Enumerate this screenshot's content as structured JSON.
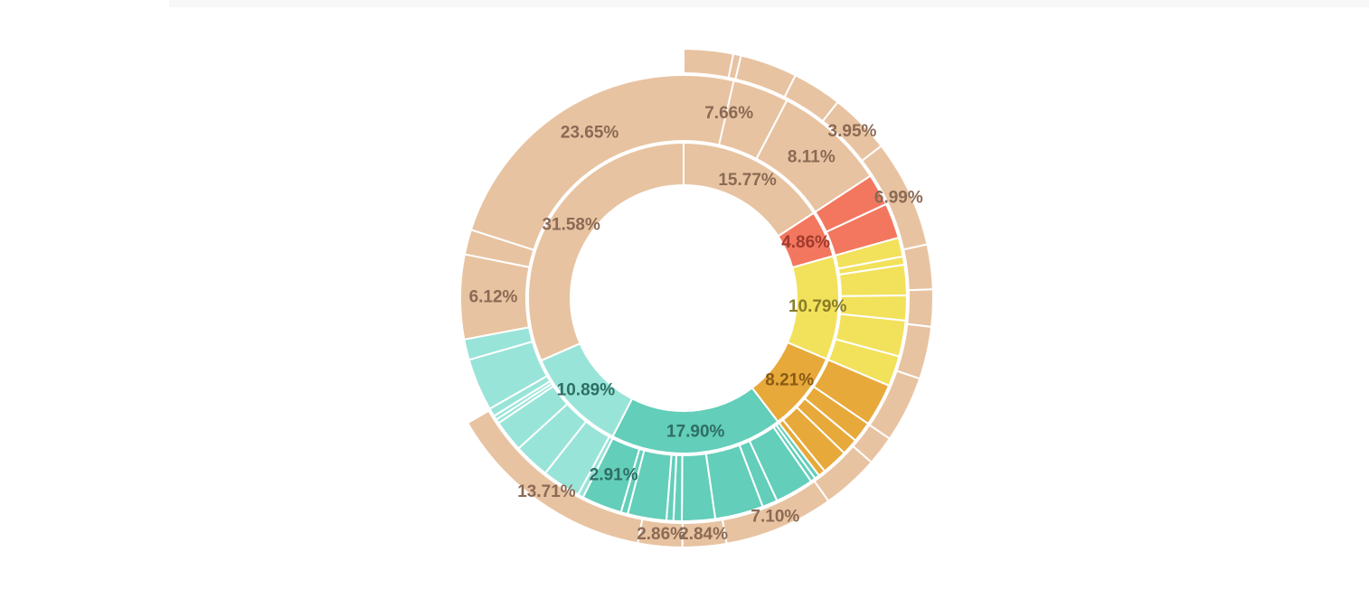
{
  "chart_data": {
    "type": "sunburst",
    "start_angle_deg": 0,
    "colors": {
      "peach": "#e8c3a1",
      "red": "#f3775f",
      "yellow": "#f2e15b",
      "orange": "#e7a93a",
      "teal": "#63ceba",
      "light_teal": "#99e4d8",
      "label_peach": "#8b6a55",
      "label_red": "#a23a2d",
      "label_yellow": "#8a7d27",
      "label_orange": "#8a5a14",
      "label_teal": "#2f6e63"
    },
    "rings": [
      {
        "name": "inner",
        "segments": [
          {
            "color": "peach",
            "value": 15.77,
            "label": "15.77%"
          },
          {
            "color": "red",
            "value": 4.86,
            "label": "4.86%"
          },
          {
            "color": "yellow",
            "value": 10.79,
            "label": "10.79%"
          },
          {
            "color": "orange",
            "value": 8.21,
            "label": "8.21%"
          },
          {
            "color": "teal",
            "value": 17.9,
            "label": "17.90%"
          },
          {
            "color": "light_teal",
            "value": 10.89,
            "label": "10.89%"
          },
          {
            "color": "peach",
            "value": 31.58,
            "label": "31.58%"
          }
        ]
      },
      {
        "name": "middle",
        "segments": [
          {
            "color": "peach",
            "value": 7.66,
            "label": "7.66%"
          },
          {
            "color": "peach",
            "value": 8.11,
            "label": "8.11%"
          },
          {
            "color": "red",
            "value": 2.31,
            "label": ""
          },
          {
            "color": "red",
            "value": 2.55,
            "label": ""
          },
          {
            "color": "yellow",
            "value": 1.38,
            "label": ""
          },
          {
            "color": "yellow",
            "value": 0.6,
            "label": ""
          },
          {
            "color": "yellow",
            "value": 2.2,
            "label": ""
          },
          {
            "color": "yellow",
            "value": 1.8,
            "label": ""
          },
          {
            "color": "yellow",
            "value": 2.6,
            "label": ""
          },
          {
            "color": "yellow",
            "value": 2.21,
            "label": ""
          },
          {
            "color": "orange",
            "value": 3.1,
            "label": ""
          },
          {
            "color": "orange",
            "value": 1.5,
            "label": ""
          },
          {
            "color": "orange",
            "value": 1.2,
            "label": ""
          },
          {
            "color": "orange",
            "value": 1.9,
            "label": ""
          },
          {
            "color": "orange",
            "value": 0.51,
            "label": ""
          },
          {
            "color": "teal",
            "value": 0.35,
            "label": ""
          },
          {
            "color": "teal",
            "value": 0.35,
            "label": ""
          },
          {
            "color": "teal",
            "value": 2.8,
            "label": ""
          },
          {
            "color": "teal",
            "value": 1.1,
            "label": ""
          },
          {
            "color": "teal",
            "value": 3.5,
            "label": ""
          },
          {
            "color": "teal",
            "value": 2.4,
            "label": ""
          },
          {
            "color": "teal",
            "value": 0.6,
            "label": ""
          },
          {
            "color": "teal",
            "value": 0.5,
            "label": ""
          },
          {
            "color": "teal",
            "value": 2.8,
            "label": ""
          },
          {
            "color": "teal",
            "value": 0.5,
            "label": ""
          },
          {
            "color": "teal",
            "value": 2.91,
            "label": "2.91%"
          },
          {
            "color": "light_teal",
            "value": 0.4,
            "label": ""
          },
          {
            "color": "light_teal",
            "value": 2.8,
            "label": ""
          },
          {
            "color": "light_teal",
            "value": 2.6,
            "label": ""
          },
          {
            "color": "light_teal",
            "value": 2.3,
            "label": ""
          },
          {
            "color": "light_teal",
            "value": 0.3,
            "label": ""
          },
          {
            "color": "light_teal",
            "value": 0.3,
            "label": ""
          },
          {
            "color": "light_teal",
            "value": 0.6,
            "label": ""
          },
          {
            "color": "light_teal",
            "value": 3.8,
            "label": ""
          },
          {
            "color": "light_teal",
            "value": 1.49,
            "label": ""
          },
          {
            "color": "peach",
            "value": 6.12,
            "label": "6.12%"
          },
          {
            "color": "peach",
            "value": 1.81,
            "label": ""
          },
          {
            "color": "peach",
            "value": 23.65,
            "label": "23.65%"
          }
        ]
      },
      {
        "name": "outer",
        "segments": [
          {
            "color": "peach",
            "value": 3.2,
            "label": ""
          },
          {
            "color": "peach",
            "value": 0.5,
            "label": ""
          },
          {
            "color": "peach",
            "value": 3.7,
            "label": ""
          },
          {
            "color": "peach",
            "value": 3.2,
            "label": ""
          },
          {
            "color": "peach",
            "value": 3.95,
            "label": "3.95%"
          },
          {
            "color": "peach",
            "value": 6.99,
            "label": "6.99%"
          },
          {
            "color": "peach",
            "value": 2.9,
            "label": ""
          },
          {
            "color": "peach",
            "value": 2.4,
            "label": ""
          },
          {
            "color": "peach",
            "value": 3.4,
            "label": ""
          },
          {
            "color": "peach",
            "value": 4.3,
            "label": ""
          },
          {
            "color": "peach",
            "value": 1.9,
            "label": ""
          },
          {
            "color": "peach",
            "value": 3.7,
            "label": ""
          },
          {
            "color": "peach",
            "value": 7.1,
            "label": "7.10%"
          },
          {
            "color": "peach",
            "value": 2.84,
            "label": "2.84%"
          },
          {
            "color": "peach",
            "value": 2.86,
            "label": "2.86%"
          },
          {
            "color": "peach",
            "value": 13.71,
            "label": "13.71%"
          }
        ]
      }
    ]
  }
}
